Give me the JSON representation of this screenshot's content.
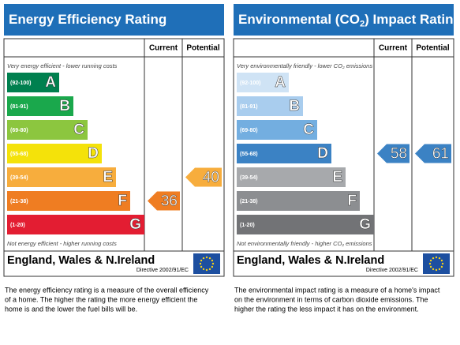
{
  "panels": [
    {
      "title": [
        "Energy Efficiency Rating"
      ],
      "headers": [
        "Current",
        "Potential"
      ],
      "top_note": [
        "Very energy efficient - lower running costs"
      ],
      "bands": [
        {
          "range": "(92-100)",
          "letter": "A",
          "color": "#00804f"
        },
        {
          "range": "(81-91)",
          "letter": "B",
          "color": "#1aa84c"
        },
        {
          "range": "(69-80)",
          "letter": "C",
          "color": "#8cc63f"
        },
        {
          "range": "(55-68)",
          "letter": "D",
          "color": "#f4e20a"
        },
        {
          "range": "(39-54)",
          "letter": "E",
          "color": "#f7ad3d"
        },
        {
          "range": "(21-38)",
          "letter": "F",
          "color": "#ef7d22"
        },
        {
          "range": "(1-20)",
          "letter": "G",
          "color": "#e31d32"
        }
      ],
      "bottom_note": [
        "Not energy efficient - higher running costs"
      ],
      "current": 36,
      "potential": 40,
      "region": "England, Wales & N.Ireland",
      "directive": "Directive 2002/91/EC",
      "description": [
        "The energy efficiency rating is a measure of the overall efficiency",
        "of a home. The higher the rating the more energy efficient the",
        "home is and the lower the fuel bills will be."
      ]
    },
    {
      "title": [
        "Environmental (CO",
        "2",
        ") Impact Rating"
      ],
      "headers": [
        "Current",
        "Potential"
      ],
      "top_note": [
        "Very environmentally friendly - lower CO",
        "2",
        " emissions"
      ],
      "bands": [
        {
          "range": "(92-100)",
          "letter": "A",
          "color": "#cfe3f5"
        },
        {
          "range": "(81-91)",
          "letter": "B",
          "color": "#a9cdee"
        },
        {
          "range": "(69-80)",
          "letter": "C",
          "color": "#73aee0"
        },
        {
          "range": "(55-68)",
          "letter": "D",
          "color": "#3b82c4"
        },
        {
          "range": "(39-54)",
          "letter": "E",
          "color": "#a7a9ac"
        },
        {
          "range": "(21-38)",
          "letter": "F",
          "color": "#8c8e91"
        },
        {
          "range": "(1-20)",
          "letter": "G",
          "color": "#727376"
        }
      ],
      "bottom_note": [
        "Not environmentally friendly - higher CO",
        "2",
        " emissions"
      ],
      "current": 58,
      "potential": 61,
      "region": "England, Wales & N.Ireland",
      "directive": "Directive 2002/91/EC",
      "description": [
        "The environmental impact rating is a measure of a home's impact",
        "on the environment in terms of carbon dioxide emissions. The",
        "higher the rating the less impact it has on the environment."
      ]
    }
  ]
}
